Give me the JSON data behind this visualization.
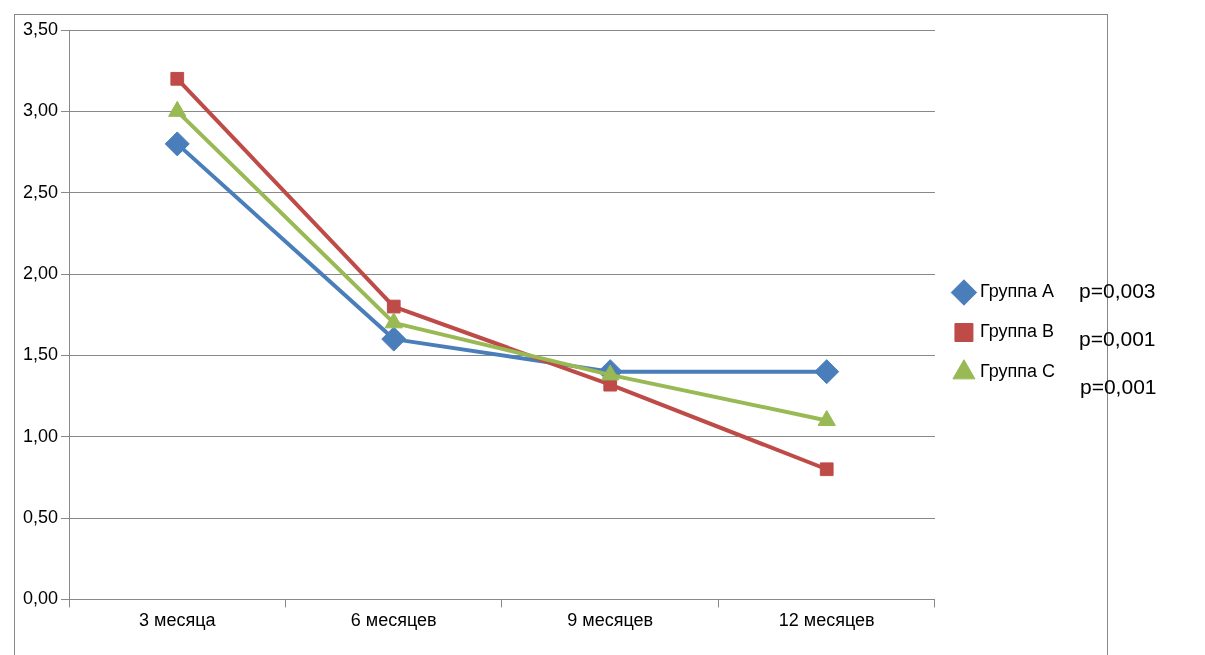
{
  "chart_data": {
    "type": "line",
    "categories": [
      "3 месяца",
      "6 месяцев",
      "9 месяцев",
      "12 месяцев"
    ],
    "series": [
      {
        "name": "Группа А",
        "color": "#4a7ebb",
        "marker": "diamond",
        "values": [
          2.8,
          1.6,
          1.4,
          1.4
        ]
      },
      {
        "name": "Группа В",
        "color": "#be4b48",
        "marker": "square",
        "values": [
          3.2,
          1.8,
          1.32,
          0.8
        ]
      },
      {
        "name": "Группа С",
        "color": "#98b954",
        "marker": "triangle",
        "values": [
          3.0,
          1.7,
          1.38,
          1.1
        ]
      }
    ],
    "ylim": [
      0,
      3.5
    ],
    "yticks": [
      {
        "value": 0,
        "label": "0,00"
      },
      {
        "value": 0.5,
        "label": "0,50"
      },
      {
        "value": 1,
        "label": "1,00"
      },
      {
        "value": 1.5,
        "label": "1,50"
      },
      {
        "value": 2,
        "label": "2,00"
      },
      {
        "value": 2.5,
        "label": "2,50"
      },
      {
        "value": 3,
        "label": "3,00"
      },
      {
        "value": 3.5,
        "label": "3,50"
      }
    ],
    "grid": "y",
    "legend": "right",
    "line_style": "solid",
    "annotations": [
      "p=0,003",
      "p=0,001",
      "p=0,001"
    ]
  }
}
